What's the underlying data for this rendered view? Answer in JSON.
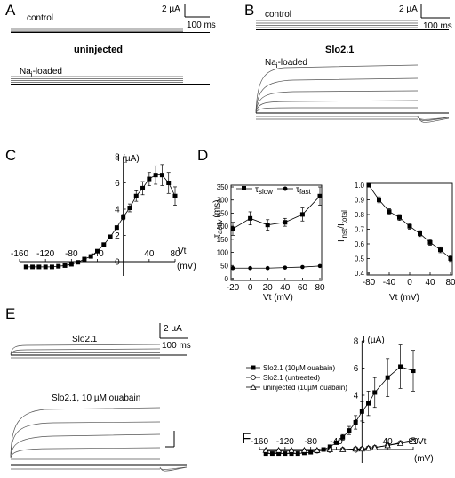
{
  "panels": {
    "A": {
      "letter": "A",
      "top_label": "control",
      "middle_title": "uninjected",
      "bottom_label_prefix": "Na",
      "bottom_label_sub": "i",
      "bottom_label_suffix": "-loaded",
      "scale": {
        "current": "2 µA",
        "time": "100 ms"
      }
    },
    "B": {
      "letter": "B",
      "top_label": "control",
      "middle_title": "Slo2.1",
      "bottom_label_prefix": "Na",
      "bottom_label_sub": "i",
      "bottom_label_suffix": "-loaded",
      "scale": {
        "current": "2 µA",
        "time": "100 ms"
      }
    },
    "C": {
      "letter": "C",
      "ylabel": "I (µA)",
      "xlabel_1": "Vt",
      "xlabel_2": "(mV)"
    },
    "D": {
      "letter": "D",
      "left_ylabel_main": "τ",
      "left_ylabel_sub": "activ",
      "left_ylabel_unit": "(ms)",
      "left_xlabel": "Vt (mV)",
      "legend_slow": "τ",
      "legend_slow_sub": "slow",
      "legend_fast": "τ",
      "legend_fast_sub": "fast",
      "right_ylabel_main": "I",
      "right_ylabel_sub1": "inst",
      "right_ylabel_mid": "/I",
      "right_ylabel_sub2": "total",
      "right_xlabel": "Vt (mV)"
    },
    "E": {
      "letter": "E",
      "top_label": "Slo2.1",
      "bottom_label": "Slo2.1, 10 µM ouabain",
      "scale": {
        "current": "2 µA",
        "time": "100 ms"
      }
    },
    "F": {
      "letter": "F",
      "ylabel": "I (µA)",
      "xlabel_1": "Vt",
      "xlabel_2": "(mV)",
      "legend": [
        "Slo2.1 (10µM ouabain)",
        "Slo2.1 (untreated)",
        "uninjected (10µM ouabain)"
      ]
    }
  },
  "chart_data": [
    {
      "panel": "C",
      "type": "line",
      "ylabel": "I (µA)",
      "xlabel": "Vt (mV)",
      "xlim": [
        -160,
        80
      ],
      "ylim": [
        0,
        8
      ],
      "x_ticks": [
        -160,
        -120,
        -80,
        -40,
        40,
        80
      ],
      "y_ticks": [
        0,
        2,
        4,
        6,
        8
      ],
      "series": [
        {
          "x": [
            -150,
            -140,
            -130,
            -120,
            -110,
            -100,
            -90,
            -80,
            -70,
            -60,
            -50,
            -40,
            -30,
            -20,
            -10,
            0,
            10,
            20,
            30,
            40,
            50,
            60,
            70,
            80
          ],
          "y": [
            -0.4,
            -0.4,
            -0.4,
            -0.4,
            -0.4,
            -0.35,
            -0.3,
            -0.2,
            -0.05,
            0.2,
            0.4,
            0.8,
            1.3,
            1.9,
            2.6,
            3.4,
            4.1,
            5.0,
            5.6,
            6.3,
            6.6,
            6.6,
            6.0,
            5.0
          ],
          "err": [
            0,
            0,
            0,
            0,
            0,
            0,
            0,
            0,
            0,
            0,
            0,
            0,
            0,
            0,
            0,
            0.2,
            0.3,
            0.4,
            0.5,
            0.5,
            0.7,
            0.8,
            0.8,
            0.7
          ]
        }
      ]
    },
    {
      "panel": "D-left",
      "type": "line",
      "xlabel": "Vt (mV)",
      "ylabel": "τactiv (ms)",
      "xlim": [
        -20,
        80
      ],
      "ylim": [
        0,
        350
      ],
      "x_ticks": [
        -20,
        0,
        20,
        40,
        60,
        80
      ],
      "y_ticks": [
        0,
        50,
        100,
        150,
        200,
        250,
        300,
        350
      ],
      "series": [
        {
          "name": "τslow",
          "x": [
            -20,
            0,
            20,
            40,
            60,
            80
          ],
          "y": [
            190,
            230,
            205,
            215,
            245,
            315
          ],
          "err": [
            25,
            25,
            20,
            15,
            25,
            35
          ]
        },
        {
          "name": "τfast",
          "x": [
            -20,
            0,
            20,
            40,
            60,
            80
          ],
          "y": [
            40,
            40,
            40,
            42,
            44,
            48
          ],
          "err": [
            2,
            2,
            2,
            2,
            2,
            3
          ]
        }
      ]
    },
    {
      "panel": "D-right",
      "type": "line",
      "xlabel": "Vt (mV)",
      "ylabel": "Iinst/Itotal",
      "xlim": [
        -80,
        80
      ],
      "ylim": [
        0.4,
        1.0
      ],
      "x_ticks": [
        -80,
        -40,
        0,
        40,
        80
      ],
      "y_ticks": [
        0.4,
        0.5,
        0.6,
        0.7,
        0.8,
        0.9,
        1.0
      ],
      "series": [
        {
          "x": [
            -80,
            -60,
            -40,
            -20,
            0,
            20,
            40,
            60,
            80
          ],
          "y": [
            1.0,
            0.9,
            0.82,
            0.78,
            0.72,
            0.67,
            0.61,
            0.56,
            0.5
          ],
          "err": [
            0.01,
            0.02,
            0.02,
            0.02,
            0.02,
            0.02,
            0.02,
            0.02,
            0.02
          ]
        }
      ]
    },
    {
      "panel": "F",
      "type": "line",
      "ylabel": "I (µA)",
      "xlabel": "Vt (mV)",
      "xlim": [
        -160,
        80
      ],
      "ylim": [
        0,
        8
      ],
      "x_ticks": [
        -160,
        -120,
        -80,
        -40,
        40,
        80
      ],
      "y_ticks": [
        0,
        2,
        4,
        6,
        8
      ],
      "series": [
        {
          "name": "Slo2.1 (10µM ouabain)",
          "marker": "filled-square",
          "x": [
            -150,
            -140,
            -130,
            -120,
            -110,
            -100,
            -90,
            -80,
            -70,
            -60,
            -50,
            -40,
            -30,
            -20,
            -10,
            0,
            10,
            20,
            40,
            60,
            80
          ],
          "y": [
            -0.3,
            -0.3,
            -0.3,
            -0.3,
            -0.3,
            -0.3,
            -0.25,
            -0.2,
            -0.1,
            0.0,
            0.2,
            0.5,
            0.9,
            1.4,
            2.0,
            2.8,
            3.4,
            4.2,
            5.3,
            6.1,
            5.8
          ],
          "err": [
            0,
            0,
            0,
            0,
            0,
            0,
            0,
            0,
            0,
            0,
            0,
            0.1,
            0.2,
            0.3,
            0.5,
            0.7,
            0.9,
            1.1,
            1.4,
            1.6,
            1.5
          ]
        },
        {
          "name": "Slo2.1 (untreated)",
          "marker": "open-circle",
          "x": [
            -150,
            -130,
            -110,
            -90,
            -70,
            -50,
            -30,
            -10,
            0,
            10,
            20,
            40,
            60,
            80
          ],
          "y": [
            -0.1,
            -0.1,
            -0.1,
            -0.1,
            -0.1,
            -0.05,
            0.0,
            0.05,
            0.05,
            0.1,
            0.15,
            0.3,
            0.5,
            0.7
          ],
          "err": [
            0,
            0,
            0,
            0,
            0,
            0,
            0,
            0,
            0,
            0,
            0,
            0.1,
            0.1,
            0.15
          ]
        },
        {
          "name": "uninjected (10µM ouabain)",
          "marker": "open-triangle",
          "x": [
            -150,
            -130,
            -110,
            -90,
            -70,
            -50,
            -30,
            -10,
            0,
            10,
            20,
            40,
            60,
            80
          ],
          "y": [
            -0.05,
            -0.05,
            -0.05,
            -0.05,
            -0.05,
            0.0,
            0.0,
            0.05,
            0.05,
            0.1,
            0.15,
            0.3,
            0.45,
            0.6
          ],
          "err": [
            0,
            0,
            0,
            0,
            0,
            0,
            0,
            0,
            0,
            0,
            0,
            0.1,
            0.1,
            0.15
          ]
        }
      ]
    }
  ]
}
